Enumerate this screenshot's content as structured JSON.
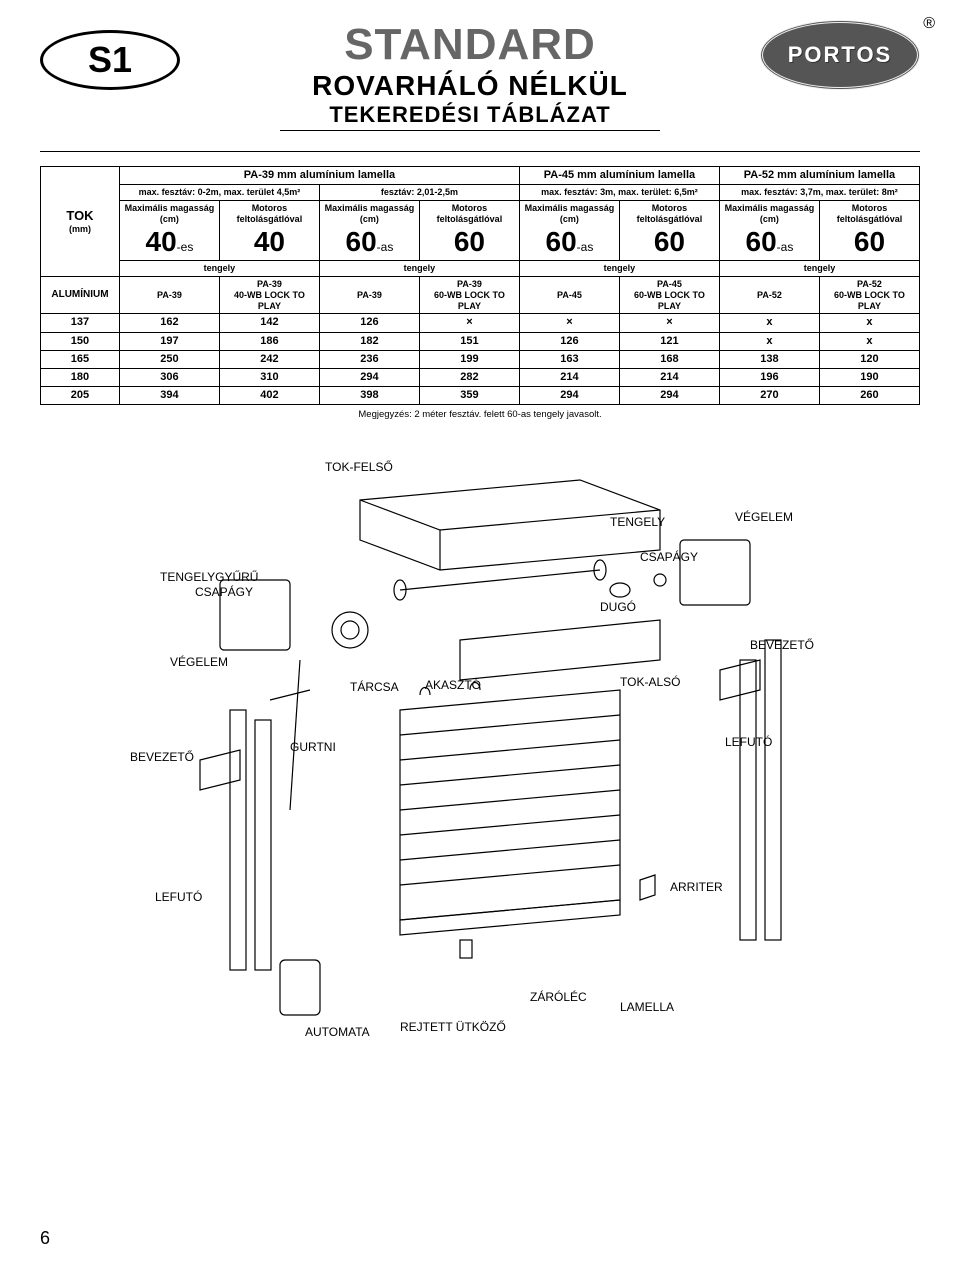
{
  "header": {
    "badge": "S1",
    "title_main": "STANDARD",
    "title_sub": "ROVARHÁLÓ NÉLKÜL",
    "title_sub2": "TEKEREDÉSI TÁBLÁZAT",
    "logo_text": "PORTOS",
    "registered": "®"
  },
  "table": {
    "groups": [
      {
        "title": "PA-39 mm alumínium lamella",
        "span_left": "max. fesztáv: 0-2m, max. terület 4,5m²",
        "span_right": "fesztáv: 2,01-2,5m"
      },
      {
        "title": "PA-45 mm alumínium lamella",
        "span": "max. fesztáv: 3m, max. terület: 6,5m²"
      },
      {
        "title": "PA-52 mm alumínium lamella",
        "span": "max. fesztáv: 3,7m, max. terület: 8m²"
      }
    ],
    "col_header_a": "Maximális magasság (cm)",
    "col_header_b": "Motoros feltolásgátlóval",
    "tengely": "tengely",
    "tok_label": "TOK",
    "tok_unit": "(mm)",
    "alu_label": "ALUMÍNIUM",
    "sizes": [
      {
        "num": "40",
        "suffix": "-es"
      },
      {
        "num": "40",
        "suffix": ""
      },
      {
        "num": "60",
        "suffix": "-as"
      },
      {
        "num": "60",
        "suffix": ""
      },
      {
        "num": "60",
        "suffix": "-as"
      },
      {
        "num": "60",
        "suffix": ""
      },
      {
        "num": "60",
        "suffix": "-as"
      },
      {
        "num": "60",
        "suffix": ""
      }
    ],
    "products": [
      "PA-39",
      "PA-39\n40-WB LOCK TO PLAY",
      "PA-39",
      "PA-39\n60-WB LOCK TO PLAY",
      "PA-45",
      "PA-45\n60-WB LOCK TO PLAY",
      "PA-52",
      "PA-52\n60-WB LOCK TO PLAY"
    ],
    "rows": [
      [
        "137",
        "162",
        "142",
        "126",
        "×",
        "×",
        "×",
        "x",
        "x"
      ],
      [
        "150",
        "197",
        "186",
        "182",
        "151",
        "126",
        "121",
        "x",
        "x"
      ],
      [
        "165",
        "250",
        "242",
        "236",
        "199",
        "163",
        "168",
        "138",
        "120"
      ],
      [
        "180",
        "306",
        "310",
        "294",
        "282",
        "214",
        "214",
        "196",
        "190"
      ],
      [
        "205",
        "394",
        "402",
        "398",
        "359",
        "294",
        "294",
        "270",
        "260"
      ]
    ],
    "note": "Megjegyzés: 2 méter fesztáv. felett 60-as tengely javasolt."
  },
  "diagram_labels": {
    "tok_felso": "TOK-FELSŐ",
    "tengely": "TENGELY",
    "vegelem_r": "VÉGELEM",
    "csapagy_r": "CSAPÁGY",
    "tengelygyuru": "TENGELYGYŰRŰ",
    "csapagy_l": "CSAPÁGY",
    "dugo": "DUGÓ",
    "vegelem_l": "VÉGELEM",
    "bevezeto_r": "BEVEZETŐ",
    "tarcsa": "TÁRCSA",
    "tok_also": "TOK-ALSÓ",
    "bevezeto_l": "BEVEZETŐ",
    "gurtni": "GURTNI",
    "akaszto": "AKASZTÓ",
    "lefuto_r": "LEFUTÓ",
    "lefuto_l": "LEFUTÓ",
    "arriter": "ARRITER",
    "automata": "AUTOMATA",
    "rejtett": "REJTETT ÜTKÖZŐ",
    "zarolec": "ZÁRÓLÉC",
    "lamella": "LAMELLA"
  },
  "page_number": "6",
  "colors": {
    "text": "#000000",
    "title_grey": "#666666",
    "logo_bg": "#555555",
    "bg": "#ffffff"
  }
}
